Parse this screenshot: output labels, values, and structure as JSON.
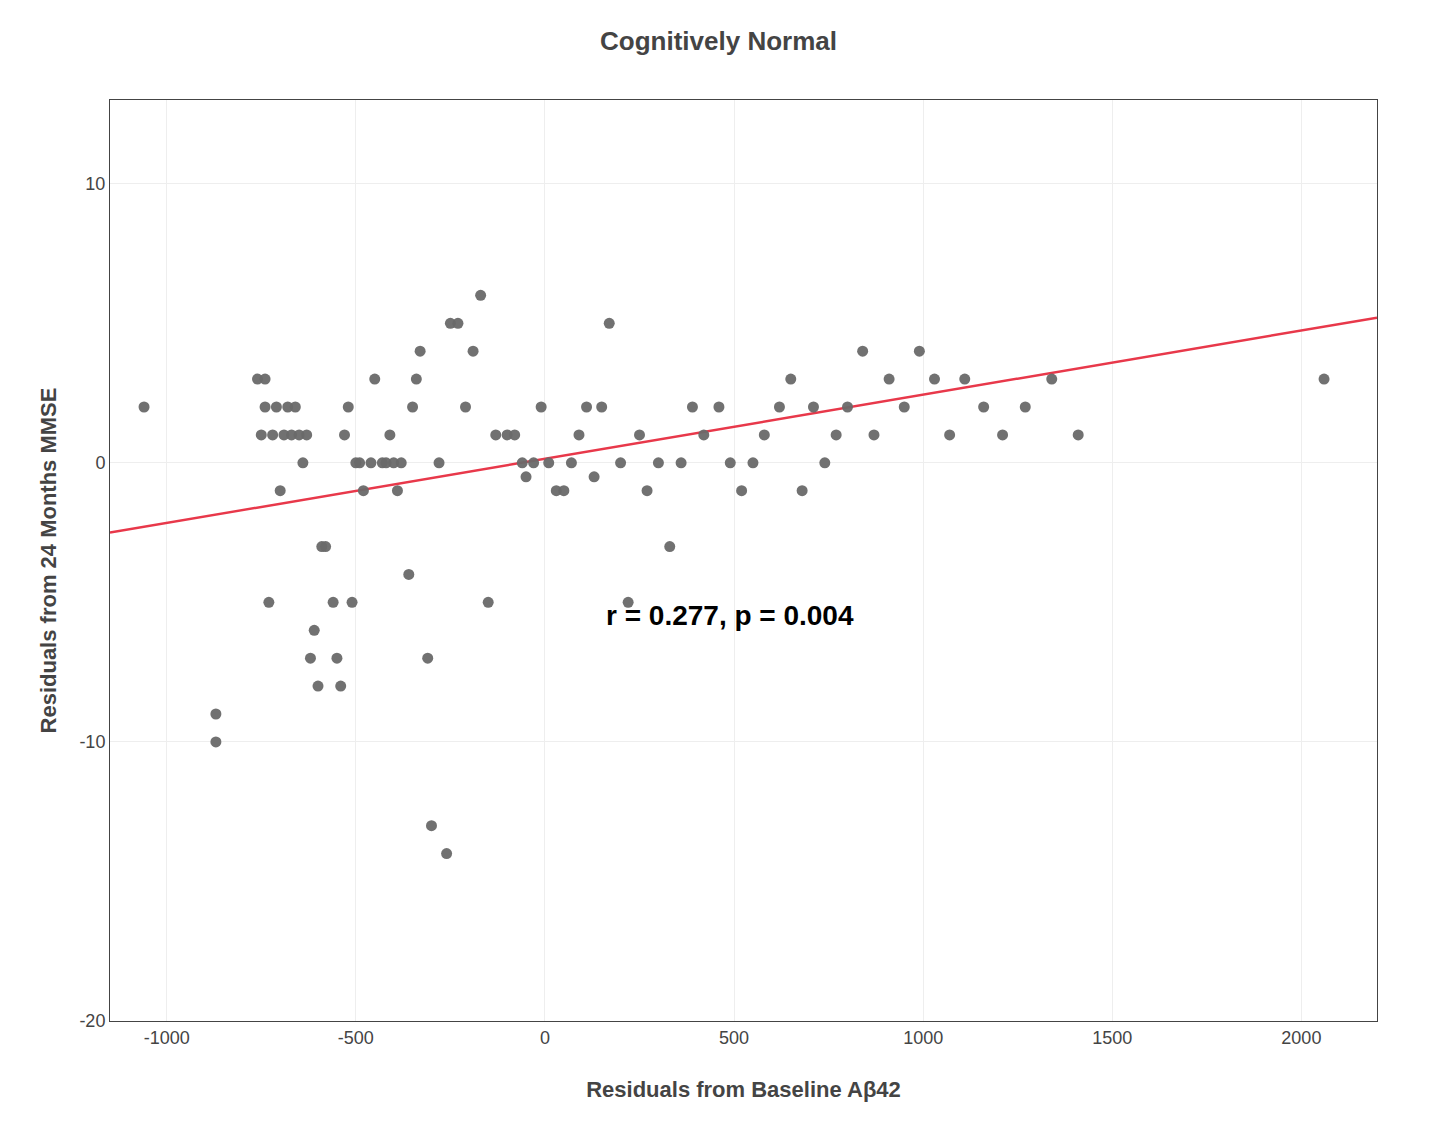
{
  "chart_data": {
    "type": "scatter",
    "title": "Cognitively Normal",
    "xlabel": "Residuals from Baseline Aβ42",
    "ylabel": "Residuals from 24 Months MMSE",
    "annotation": "r = 0.277, p = 0.004",
    "xlim": [
      -1150,
      2200
    ],
    "ylim": [
      -20,
      13
    ],
    "xticks": [
      -1000,
      -500,
      0,
      500,
      1000,
      1500,
      2000
    ],
    "yticks": [
      -20,
      -10,
      0,
      10
    ],
    "grid": true,
    "series": [
      {
        "type": "scatter",
        "color": "#696969",
        "x": [
          -1060,
          -870,
          -870,
          -760,
          -750,
          -740,
          -740,
          -730,
          -720,
          -710,
          -700,
          -690,
          -680,
          -670,
          -660,
          -650,
          -640,
          -630,
          -620,
          -610,
          -600,
          -590,
          -580,
          -560,
          -550,
          -540,
          -530,
          -520,
          -510,
          -500,
          -490,
          -480,
          -460,
          -450,
          -430,
          -420,
          -410,
          -400,
          -390,
          -380,
          -360,
          -350,
          -340,
          -330,
          -310,
          -300,
          -280,
          -260,
          -250,
          -230,
          -210,
          -190,
          -170,
          -150,
          -130,
          -100,
          -80,
          -60,
          -50,
          -30,
          -10,
          10,
          30,
          50,
          70,
          90,
          110,
          130,
          150,
          170,
          200,
          220,
          250,
          270,
          300,
          330,
          360,
          390,
          420,
          460,
          490,
          520,
          550,
          580,
          620,
          650,
          680,
          710,
          740,
          770,
          800,
          840,
          870,
          910,
          950,
          990,
          1030,
          1070,
          1110,
          1160,
          1210,
          1270,
          1340,
          1410,
          2060
        ],
        "values": [
          2,
          -9,
          -10,
          3,
          1,
          2,
          3,
          -5,
          1,
          2,
          -1,
          1,
          2,
          1,
          2,
          1,
          0,
          1,
          -7,
          -6,
          -8,
          -3,
          -3,
          -5,
          -7,
          -8,
          1,
          2,
          -5,
          0,
          0,
          -1,
          0,
          3,
          0,
          0,
          1,
          0,
          -1,
          0,
          -4,
          2,
          3,
          4,
          -7,
          -13,
          0,
          -14,
          5,
          5,
          2,
          4,
          6,
          -5,
          1,
          1,
          1,
          0,
          -0.5,
          0,
          2,
          0,
          -1,
          -1,
          0,
          1,
          2,
          -0.5,
          2,
          5,
          0,
          -5,
          1,
          -1,
          0,
          -3,
          0,
          2,
          1,
          2,
          0,
          -1,
          0,
          1,
          2,
          3,
          -1,
          2,
          0,
          1,
          2,
          4,
          1,
          3,
          2,
          4,
          3,
          1,
          3,
          2,
          1,
          2,
          3,
          1,
          3
        ]
      },
      {
        "type": "line",
        "color": "#e8384a",
        "x": [
          -1150,
          2200
        ],
        "values": [
          -2.5,
          5.2
        ]
      }
    ]
  }
}
